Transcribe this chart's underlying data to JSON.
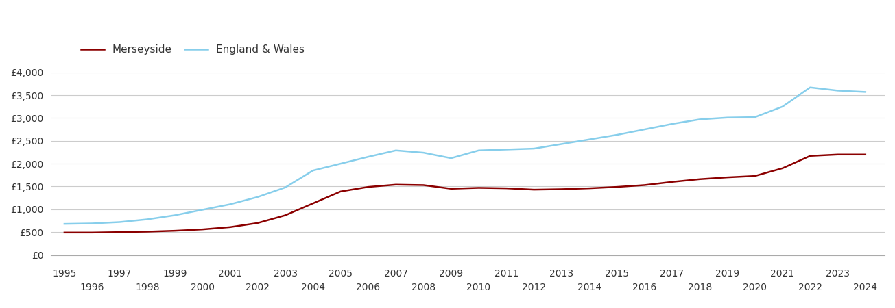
{
  "merseyside": {
    "years": [
      1995,
      1996,
      1997,
      1998,
      1999,
      2000,
      2001,
      2002,
      2003,
      2004,
      2005,
      2006,
      2007,
      2008,
      2009,
      2010,
      2011,
      2012,
      2013,
      2014,
      2015,
      2016,
      2017,
      2018,
      2019,
      2020,
      2021,
      2022,
      2023,
      2024
    ],
    "values": [
      490,
      490,
      500,
      510,
      530,
      560,
      610,
      700,
      870,
      1130,
      1390,
      1490,
      1540,
      1530,
      1450,
      1470,
      1460,
      1430,
      1440,
      1460,
      1490,
      1530,
      1600,
      1660,
      1700,
      1730,
      1900,
      2170,
      2200,
      2200
    ]
  },
  "england_wales": {
    "years": [
      1995,
      1996,
      1997,
      1998,
      1999,
      2000,
      2001,
      2002,
      2003,
      2004,
      2005,
      2006,
      2007,
      2008,
      2009,
      2010,
      2011,
      2012,
      2013,
      2014,
      2015,
      2016,
      2017,
      2018,
      2019,
      2020,
      2021,
      2022,
      2023,
      2024
    ],
    "values": [
      680,
      690,
      720,
      780,
      870,
      990,
      1110,
      1270,
      1480,
      1850,
      2000,
      2150,
      2290,
      2240,
      2120,
      2290,
      2310,
      2330,
      2430,
      2530,
      2630,
      2750,
      2870,
      2970,
      3010,
      3020,
      3250,
      3670,
      3600,
      3570
    ]
  },
  "merseyside_color": "#8B0000",
  "england_wales_color": "#87CEEB",
  "merseyside_label": "Merseyside",
  "england_wales_label": "England & Wales",
  "ylim": [
    0,
    4000
  ],
  "yticks": [
    0,
    500,
    1000,
    1500,
    2000,
    2500,
    3000,
    3500,
    4000
  ],
  "ytick_labels": [
    "£0",
    "£500",
    "£1,000",
    "£1,500",
    "£2,000",
    "£2,500",
    "£3,000",
    "£3,500",
    "£4,000"
  ],
  "xlim": [
    1994.5,
    2024.7
  ],
  "line_width": 1.8,
  "background_color": "#ffffff",
  "grid_color": "#cccccc",
  "font_color": "#333333",
  "tick_fontsize": 10,
  "legend_fontsize": 11
}
